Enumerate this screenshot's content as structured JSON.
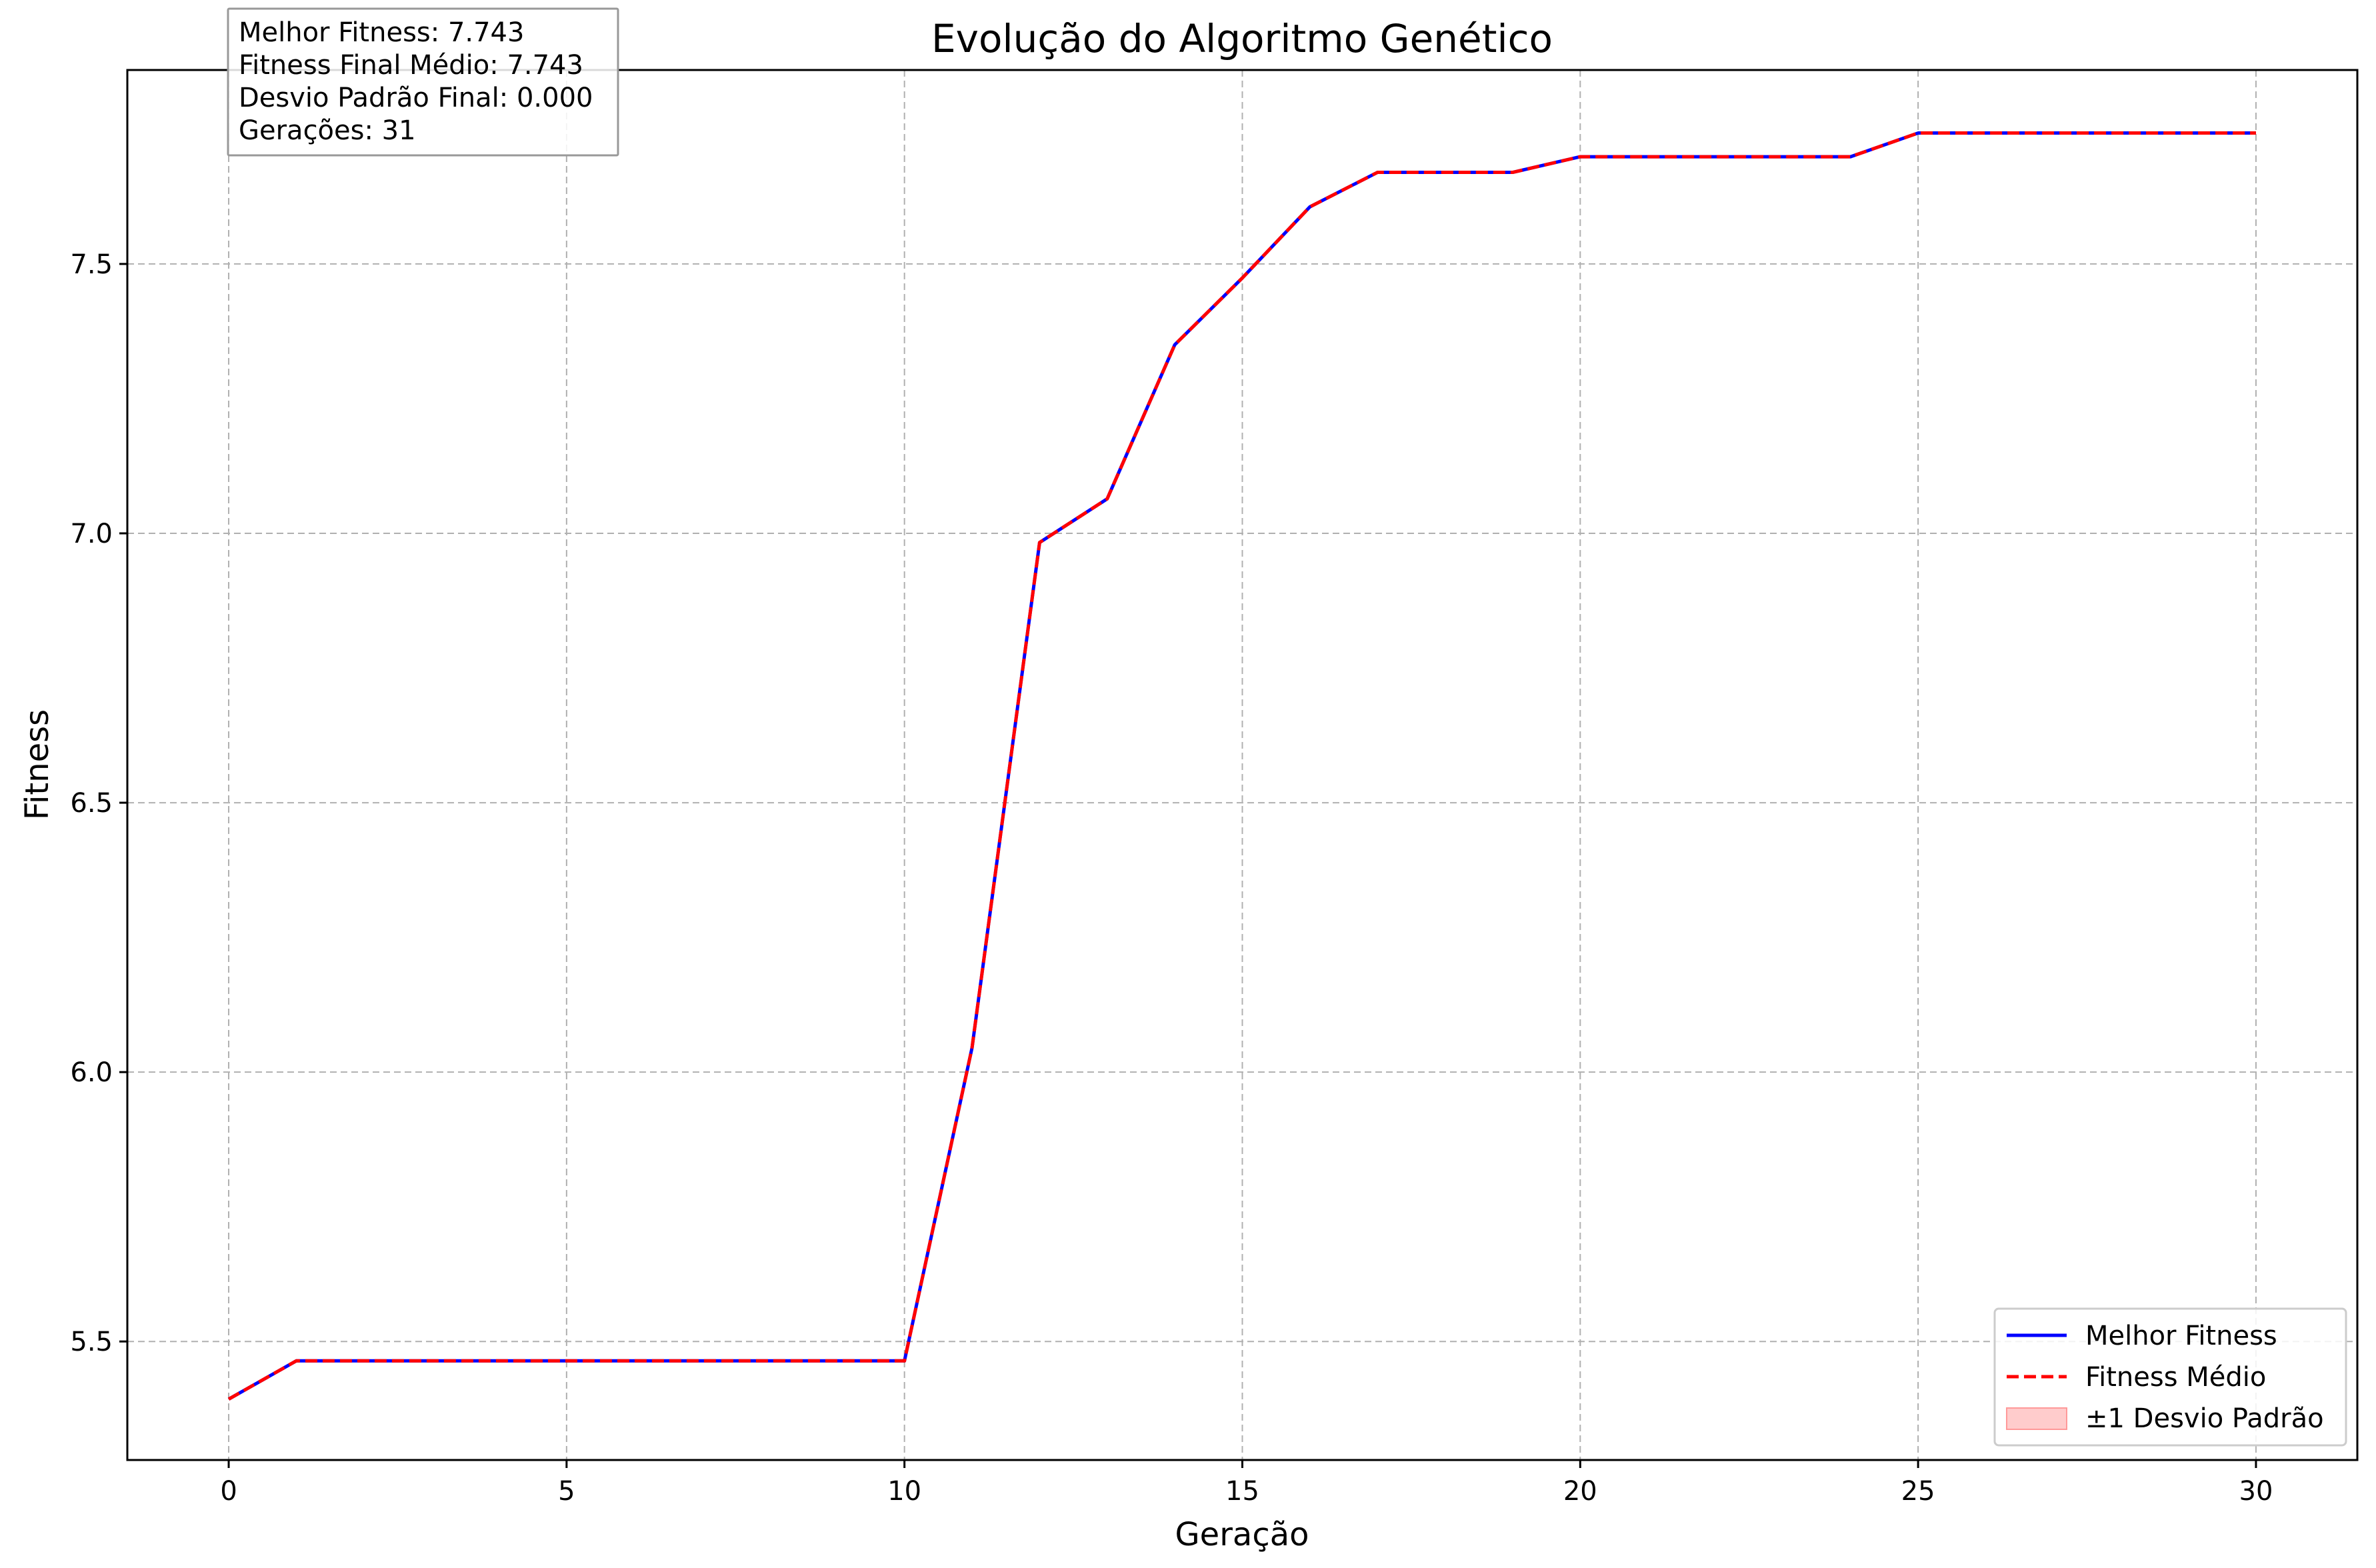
{
  "chart_data": {
    "type": "line",
    "title": "Evolução do Algoritmo Genético",
    "xlabel": "Geração",
    "ylabel": "Fitness",
    "xlim": [
      -1.5,
      31.5
    ],
    "ylim": [
      5.28,
      7.86
    ],
    "x_ticks": [
      0,
      5,
      10,
      15,
      20,
      25,
      30
    ],
    "x_tick_labels": [
      "0",
      "5",
      "10",
      "15",
      "20",
      "25",
      "30"
    ],
    "y_ticks": [
      5.5,
      6.0,
      6.5,
      7.0,
      7.5
    ],
    "y_tick_labels": [
      "5.5",
      "6.0",
      "6.5",
      "7.0",
      "7.5"
    ],
    "grid": true,
    "legend_position": "lower-right",
    "x": [
      0,
      1,
      2,
      3,
      4,
      5,
      6,
      7,
      8,
      9,
      10,
      11,
      12,
      13,
      14,
      15,
      16,
      17,
      18,
      19,
      20,
      21,
      22,
      23,
      24,
      25,
      26,
      27,
      28,
      29,
      30
    ],
    "series": [
      {
        "name": "Melhor Fitness",
        "color": "#0000ff",
        "style": "solid",
        "values": [
          5.393,
          5.464,
          5.464,
          5.464,
          5.464,
          5.464,
          5.464,
          5.464,
          5.464,
          5.464,
          5.464,
          6.045,
          6.983,
          7.064,
          7.35,
          7.474,
          7.606,
          7.67,
          7.67,
          7.67,
          7.699,
          7.699,
          7.699,
          7.699,
          7.699,
          7.743,
          7.743,
          7.743,
          7.743,
          7.743,
          7.743
        ]
      },
      {
        "name": "Fitness Médio",
        "color": "#ff0000",
        "style": "dashed",
        "values": [
          5.393,
          5.464,
          5.464,
          5.464,
          5.464,
          5.464,
          5.464,
          5.464,
          5.464,
          5.464,
          5.464,
          6.045,
          6.983,
          7.064,
          7.35,
          7.474,
          7.606,
          7.67,
          7.67,
          7.67,
          7.699,
          7.699,
          7.699,
          7.699,
          7.699,
          7.743,
          7.743,
          7.743,
          7.743,
          7.743,
          7.743
        ]
      }
    ],
    "band": {
      "name": "±1 Desvio Padrão",
      "color": "#ff9999",
      "std": [
        0,
        0,
        0,
        0,
        0,
        0,
        0,
        0,
        0,
        0,
        0,
        0,
        0,
        0,
        0,
        0,
        0,
        0,
        0,
        0,
        0,
        0,
        0,
        0,
        0,
        0,
        0,
        0,
        0,
        0,
        0
      ]
    },
    "annotation_lines": [
      "Melhor Fitness: 7.743",
      "Fitness Final Médio: 7.743",
      "Desvio Padrão Final: 0.000",
      "Gerações: 31"
    ]
  }
}
